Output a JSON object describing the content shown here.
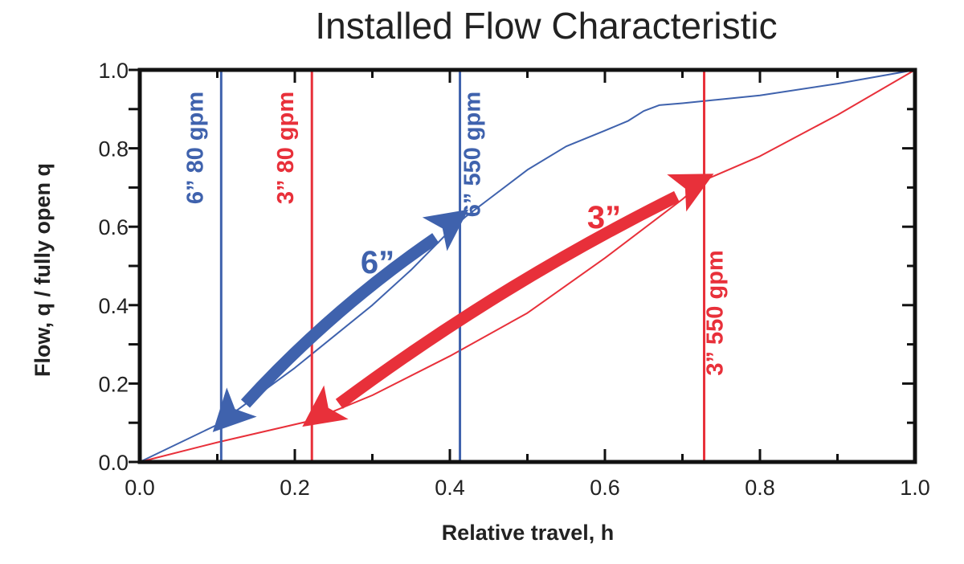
{
  "chart_data": {
    "type": "line",
    "title": "Installed Flow Characteristic",
    "xlabel": "Relative travel, h",
    "ylabel": "Flow, q / fully open q",
    "xlim": [
      0,
      1
    ],
    "ylim": [
      0,
      1
    ],
    "x_ticks": [
      "0.0",
      "0.2",
      "0.4",
      "0.6",
      "0.8",
      "1.0"
    ],
    "y_ticks": [
      "0.0",
      "0.2",
      "0.4",
      "0.6",
      "0.8",
      "1.0"
    ],
    "grid": false,
    "series": [
      {
        "name": "6”",
        "color": "#3f62ad",
        "x": [
          0,
          0.1,
          0.2,
          0.3,
          0.35,
          0.4,
          0.42,
          0.45,
          0.5,
          0.55,
          0.6,
          0.63,
          0.65,
          0.67,
          0.7,
          0.75,
          0.8,
          0.9,
          1.0
        ],
        "y": [
          0,
          0.095,
          0.24,
          0.4,
          0.49,
          0.59,
          0.625,
          0.67,
          0.745,
          0.805,
          0.845,
          0.87,
          0.895,
          0.91,
          0.915,
          0.925,
          0.935,
          0.965,
          1.0
        ]
      },
      {
        "name": "3”",
        "color": "#e8303a",
        "x": [
          0,
          0.1,
          0.22,
          0.3,
          0.4,
          0.5,
          0.6,
          0.7,
          0.73,
          0.8,
          0.9,
          1.0
        ],
        "y": [
          0,
          0.05,
          0.105,
          0.17,
          0.27,
          0.38,
          0.52,
          0.67,
          0.72,
          0.78,
          0.885,
          1.0
        ]
      }
    ],
    "vertical_lines": [
      {
        "x": 0.105,
        "label": "6” 80 gpm",
        "color": "#3f62ad"
      },
      {
        "x": 0.222,
        "label": "3” 80 gpm",
        "color": "#e8303a"
      },
      {
        "x": 0.413,
        "label": "6” 550 gpm",
        "color": "#3f62ad"
      },
      {
        "x": 0.728,
        "label": "3” 550 gpm",
        "color": "#e8303a"
      }
    ],
    "range_arrows": [
      {
        "label": "6”",
        "color": "#3f62ad",
        "from": [
          0.413,
          0.625
        ],
        "to": [
          0.105,
          0.095
        ]
      },
      {
        "label": "3”",
        "color": "#e8303a",
        "from": [
          0.728,
          0.72
        ],
        "to": [
          0.222,
          0.105
        ]
      }
    ]
  }
}
